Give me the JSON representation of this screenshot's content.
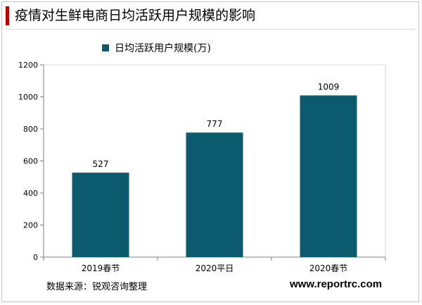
{
  "title": "疫情对生鲜电商日均活跃用户规模的影响",
  "source": "数据来源：锐观咨询整理",
  "website": "www.reportrc.com",
  "colors": {
    "accent": "#c00000",
    "bar": "#0b5a6e"
  },
  "chart_data": {
    "type": "bar",
    "categories": [
      "2019春节",
      "2020平日",
      "2020春节"
    ],
    "series": [
      {
        "name": "日均活跃用户规模(万)",
        "values": [
          527,
          777,
          1009
        ]
      }
    ],
    "y_ticks": [
      "0",
      "200",
      "400",
      "600",
      "800",
      "1000",
      "1200"
    ],
    "ylim": [
      0,
      1200
    ],
    "grid": false,
    "legend": "top-left",
    "data_labels": [
      "527",
      "777",
      "1009"
    ]
  }
}
